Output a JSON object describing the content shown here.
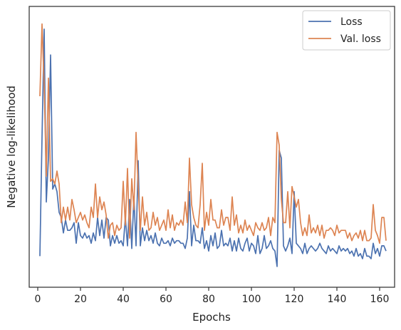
{
  "chart_data": {
    "type": "line",
    "title": "",
    "xlabel": "Epochs",
    "ylabel": "Negative log-likelihood",
    "xlim": [
      -4,
      167
    ],
    "ylim": [
      0,
      100
    ],
    "xticks": [
      0,
      20,
      40,
      60,
      80,
      100,
      120,
      140,
      160
    ],
    "xtick_labels": [
      "0",
      "20",
      "40",
      "60",
      "80",
      "100",
      "120",
      "140",
      "160"
    ],
    "y_tick_labels_shown": false,
    "grid": false,
    "legend": {
      "placement": "top-right",
      "entries": [
        "Loss",
        "Val. loss"
      ]
    },
    "x": [
      1,
      2,
      3,
      4,
      5,
      6,
      7,
      8,
      9,
      10,
      11,
      12,
      13,
      14,
      15,
      16,
      17,
      18,
      19,
      20,
      21,
      22,
      23,
      24,
      25,
      26,
      27,
      28,
      29,
      30,
      31,
      32,
      33,
      34,
      35,
      36,
      37,
      38,
      39,
      40,
      41,
      42,
      43,
      44,
      45,
      46,
      47,
      48,
      49,
      50,
      51,
      52,
      53,
      54,
      55,
      56,
      57,
      58,
      59,
      60,
      61,
      62,
      63,
      64,
      65,
      66,
      67,
      68,
      69,
      70,
      71,
      72,
      73,
      74,
      75,
      76,
      77,
      78,
      79,
      80,
      81,
      82,
      83,
      84,
      85,
      86,
      87,
      88,
      89,
      90,
      91,
      92,
      93,
      94,
      95,
      96,
      97,
      98,
      99,
      100,
      101,
      102,
      103,
      104,
      105,
      106,
      107,
      108,
      109,
      110,
      111,
      112,
      113,
      114,
      115,
      116,
      117,
      118,
      119,
      120,
      121,
      122,
      123,
      124,
      125,
      126,
      127,
      128,
      129,
      130,
      131,
      132,
      133,
      134,
      135,
      136,
      137,
      138,
      139,
      140,
      141,
      142,
      143,
      144,
      145,
      146,
      147,
      148,
      149,
      150,
      151,
      152,
      153,
      154,
      155,
      156,
      157,
      158,
      159,
      160,
      161,
      162,
      163
    ],
    "series": [
      {
        "name": "Loss",
        "color": "#4c72b0",
        "values": [
          9,
          55,
          97,
          30,
          47,
          87,
          35,
          37,
          34,
          26,
          24,
          18,
          23,
          19,
          19,
          20,
          22,
          14,
          22,
          17,
          16,
          18,
          16,
          17,
          14,
          18,
          15,
          24,
          17,
          23,
          16,
          24,
          23,
          13,
          17,
          14,
          17,
          14,
          15,
          13,
          24,
          13,
          31,
          12,
          32,
          13,
          46,
          13,
          20,
          15,
          19,
          15,
          17,
          14,
          18,
          14,
          13,
          16,
          14,
          14,
          15,
          13,
          16,
          14,
          15,
          15,
          14,
          14,
          12,
          16,
          34,
          13,
          21,
          15,
          15,
          14,
          20,
          12,
          15,
          11,
          17,
          13,
          18,
          12,
          13,
          19,
          13,
          14,
          13,
          16,
          11,
          15,
          11,
          16,
          12,
          11,
          14,
          16,
          11,
          14,
          13,
          10,
          17,
          10,
          12,
          17,
          12,
          13,
          15,
          12,
          11,
          5,
          50,
          47,
          13,
          11,
          13,
          16,
          10,
          34,
          14,
          13,
          12,
          10,
          14,
          10,
          12,
          13,
          12,
          11,
          12,
          14,
          12,
          11,
          10,
          13,
          11,
          12,
          11,
          10,
          13,
          11,
          12,
          11,
          12,
          10,
          11,
          9,
          12,
          9,
          10,
          8,
          12,
          9,
          9,
          8,
          14,
          10,
          12,
          9,
          13,
          13,
          11
        ]
      },
      {
        "name": "Val. loss",
        "color": "#dd8452",
        "values": [
          71,
          99,
          75,
          40,
          78,
          38,
          39,
          37,
          42,
          37,
          22,
          28,
          23,
          28,
          23,
          31,
          27,
          22,
          24,
          26,
          23,
          25,
          22,
          20,
          28,
          24,
          37,
          24,
          32,
          27,
          30,
          25,
          16,
          21,
          22,
          17,
          21,
          19,
          20,
          38,
          21,
          43,
          16,
          39,
          27,
          57,
          36,
          19,
          32,
          21,
          26,
          19,
          20,
          26,
          21,
          24,
          19,
          21,
          23,
          19,
          27,
          20,
          25,
          19,
          22,
          21,
          23,
          21,
          30,
          22,
          47,
          29,
          24,
          21,
          20,
          29,
          45,
          19,
          26,
          21,
          31,
          23,
          23,
          20,
          20,
          27,
          21,
          24,
          24,
          19,
          32,
          21,
          25,
          18,
          21,
          18,
          23,
          19,
          21,
          19,
          17,
          22,
          20,
          19,
          22,
          19,
          20,
          24,
          17,
          24,
          22,
          57,
          52,
          31,
          22,
          22,
          34,
          20,
          36,
          32,
          28,
          31,
          22,
          17,
          20,
          17,
          25,
          18,
          20,
          18,
          21,
          17,
          21,
          16,
          19,
          19,
          20,
          19,
          17,
          21,
          18,
          19,
          19,
          19,
          16,
          18,
          15,
          17,
          18,
          16,
          19,
          15,
          19,
          15,
          15,
          16,
          29,
          19,
          17,
          14,
          24,
          24,
          15
        ]
      }
    ]
  }
}
